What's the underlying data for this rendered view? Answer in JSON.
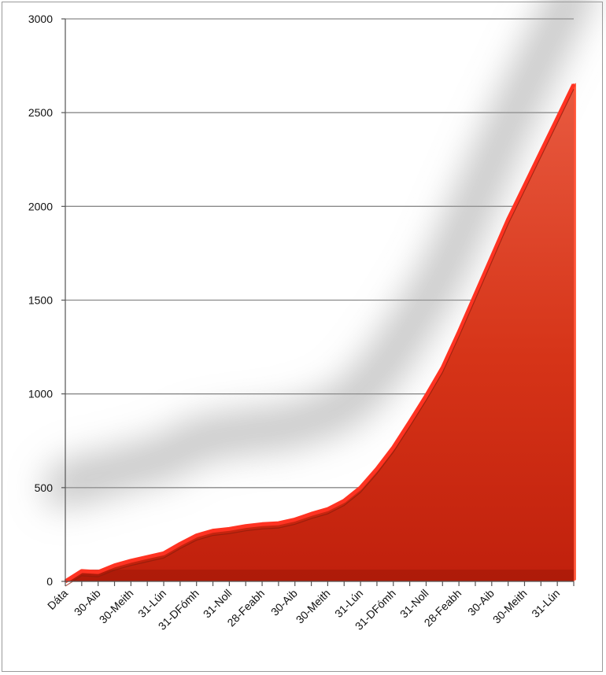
{
  "chart_data": {
    "type": "area",
    "title": "",
    "xlabel": "",
    "ylabel": "",
    "ylim": [
      0,
      3000
    ],
    "yticks": [
      "0",
      "500",
      "1000",
      "1500",
      "2000",
      "2500",
      "3000"
    ],
    "grid": true,
    "legend": "none",
    "fill_color": "#d42a14",
    "highlight_color": "#ff3322",
    "categories": [
      "Dáta",
      "",
      "30-Aib",
      "",
      "30-Meith",
      "",
      "31-Lún",
      "",
      "31-DFómh",
      "",
      "31-Noll",
      "",
      "28-Feabh",
      "",
      "30-Aib",
      "",
      "30-Meith",
      "",
      "31-Lún",
      "",
      "31-DFómh",
      "",
      "31-Noll",
      "",
      "28-Feabh",
      "",
      "30-Aib",
      "",
      "30-Meith",
      "",
      "31-Lún",
      ""
    ],
    "values": [
      0,
      55,
      50,
      85,
      110,
      130,
      150,
      200,
      245,
      270,
      280,
      295,
      305,
      310,
      330,
      360,
      385,
      430,
      500,
      600,
      715,
      850,
      990,
      1140,
      1330,
      1530,
      1730,
      1930,
      2110,
      2290,
      2470,
      2650
    ]
  }
}
